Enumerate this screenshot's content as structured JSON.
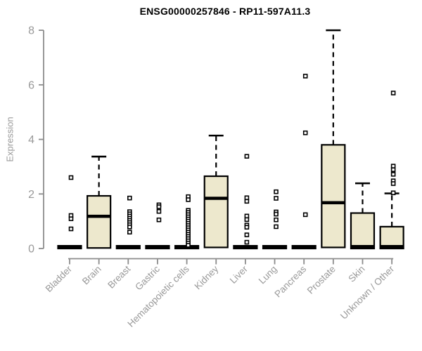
{
  "title": "ENSG00000257846 - RP11-597A11.3",
  "chart_data": {
    "type": "boxplot",
    "title": "ENSG00000257846 - RP11-597A11.3",
    "xlabel": "",
    "ylabel": "Expression",
    "ylim": [
      0,
      8
    ],
    "yticks": [
      0,
      2,
      4,
      6,
      8
    ],
    "grid": false,
    "legend": false,
    "box_fill": "#EDE8CD",
    "box_stroke": "#000000",
    "axis_color": "#8C8C8C",
    "label_color": "#999999",
    "title_color": "#000000",
    "categories": [
      "Bladder",
      "Brain",
      "Breast",
      "Gastric",
      "Hematopoietic cells",
      "Kidney",
      "Liver",
      "Lung",
      "Pancreas",
      "Prostate",
      "Skin",
      "Unknown / Other"
    ],
    "boxes": [
      {
        "category": "Bladder",
        "q1": 0,
        "median": 0.06,
        "q3": 0.1,
        "whisker_high": 0.1,
        "outliers": [
          2.6,
          1.21,
          1.09,
          0.72
        ]
      },
      {
        "category": "Brain",
        "q1": 0.02,
        "median": 1.18,
        "q3": 1.93,
        "whisker_high": 3.37,
        "outliers": []
      },
      {
        "category": "Breast",
        "q1": 0,
        "median": 0.06,
        "q3": 0.1,
        "whisker_high": 0.1,
        "outliers": [
          1.85,
          1.35,
          1.27,
          1.19,
          1.11,
          1.03,
          0.95,
          0.87,
          0.79,
          0.6
        ]
      },
      {
        "category": "Gastric",
        "q1": 0,
        "median": 0.06,
        "q3": 0.1,
        "whisker_high": 0.1,
        "outliers": [
          1.6,
          1.53,
          1.36,
          1.05
        ]
      },
      {
        "category": "Hematopoietic cells",
        "q1": 0,
        "median": 0.06,
        "q3": 0.1,
        "whisker_high": 0.1,
        "outliers": [
          1.9,
          1.79,
          1.4,
          1.32,
          1.24,
          1.16,
          1.08,
          1.0,
          0.92,
          0.84,
          0.76,
          0.68,
          0.6,
          0.52,
          0.44,
          0.36,
          0.28,
          0.2,
          0.12
        ]
      },
      {
        "category": "Kidney",
        "q1": 0.04,
        "median": 1.84,
        "q3": 2.65,
        "whisker_high": 4.14,
        "outliers": []
      },
      {
        "category": "Liver",
        "q1": 0,
        "median": 0.06,
        "q3": 0.1,
        "whisker_high": 0.1,
        "outliers": [
          3.38,
          1.86,
          1.73,
          1.19,
          1.06,
          0.86,
          0.78,
          0.5,
          0.23
        ]
      },
      {
        "category": "Lung",
        "q1": 0,
        "median": 0.06,
        "q3": 0.1,
        "whisker_high": 0.1,
        "outliers": [
          2.08,
          1.84,
          1.34,
          1.26,
          1.05,
          0.8
        ]
      },
      {
        "category": "Pancreas",
        "q1": 0,
        "median": 0.06,
        "q3": 0.1,
        "whisker_high": 0.1,
        "outliers": [
          6.32,
          4.24,
          1.24
        ]
      },
      {
        "category": "Prostate",
        "q1": 0.04,
        "median": 1.68,
        "q3": 3.8,
        "whisker_high": 8.0,
        "outliers": []
      },
      {
        "category": "Skin",
        "q1": 0,
        "median": 0.07,
        "q3": 1.3,
        "whisker_high": 2.39,
        "outliers": []
      },
      {
        "category": "Unknown / Other",
        "q1": 0,
        "median": 0.07,
        "q3": 0.8,
        "whisker_high": 2.02,
        "outliers": [
          5.7,
          3.02,
          2.89,
          2.72,
          2.48,
          2.38,
          2.04
        ]
      }
    ]
  }
}
